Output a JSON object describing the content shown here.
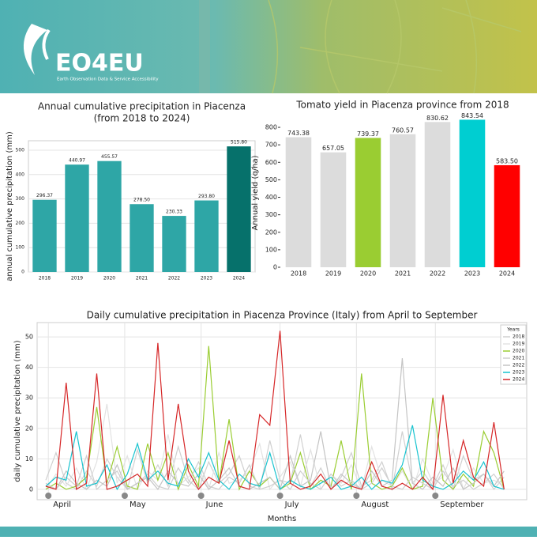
{
  "header": {
    "logo": "EO4EU",
    "tagline": "Earth Observation Data & Service Accessibility"
  },
  "chart_data": [
    {
      "type": "bar",
      "title": "Annual cumulative precipitation in Piacenza",
      "subtitle": "(from 2018 to 2024)",
      "ylabel": "annual cumulative precipitation (mm)",
      "categories": [
        "2018",
        "2019",
        "2020",
        "2021",
        "2022",
        "2023",
        "2024"
      ],
      "values": [
        296.37,
        440.97,
        455.57,
        278.5,
        230.33,
        293.8,
        515.8
      ],
      "value_labels": [
        "296.37",
        "440.97",
        "455.57",
        "278.50",
        "230.33",
        "293.80",
        "515.80"
      ],
      "colors": [
        "#2ea6a6",
        "#2ea6a6",
        "#2ea6a6",
        "#2ea6a6",
        "#2ea6a6",
        "#2ea6a6",
        "#06716b"
      ],
      "ylim": [
        0,
        539
      ],
      "yticks": [
        0,
        100,
        200,
        300,
        400,
        500
      ],
      "grid": true
    },
    {
      "type": "bar",
      "title": "Tomato yield in Piacenza province from 2018",
      "ylabel": "Annual yield (q/ha)",
      "categories": [
        "2018",
        "2019",
        "2020",
        "2021",
        "2022",
        "2023",
        "2024"
      ],
      "values": [
        743.38,
        657.05,
        739.37,
        760.57,
        830.62,
        843.54,
        583.5
      ],
      "value_labels": [
        "743.38",
        "657.05",
        "739.37",
        "760.57",
        "830.62",
        "843.54",
        "583.50"
      ],
      "colors": [
        "#dcdcdc",
        "#dcdcdc",
        "#9acd32",
        "#dcdcdc",
        "#dcdcdc",
        "#00ced1",
        "#ff0000"
      ],
      "ylim": [
        0,
        850
      ],
      "yticks": [
        0,
        100,
        200,
        300,
        400,
        500,
        600,
        700,
        800
      ],
      "grid": false
    },
    {
      "type": "line",
      "title": "Daily cumulative precipitation in Piacenza Province (Italy) from April to September",
      "xlabel": "Months",
      "ylabel": "daily cumulative precipitation (mm)",
      "legend_title": "Years",
      "legend": "upper right",
      "x": [
        0,
        4,
        8,
        12,
        16,
        20,
        24,
        28,
        32,
        36,
        40,
        44,
        48,
        52,
        56,
        60,
        64,
        68,
        72,
        76,
        80,
        84,
        88,
        92,
        96,
        100,
        104,
        108,
        112,
        116,
        120,
        124,
        128,
        132,
        136,
        140,
        144,
        148,
        152,
        156,
        160,
        164,
        168,
        172,
        176,
        180
      ],
      "xlim": [
        0,
        183
      ],
      "xticks": [
        {
          "value": 1,
          "label": "April"
        },
        {
          "value": 31,
          "label": "May"
        },
        {
          "value": 61,
          "label": "June"
        },
        {
          "value": 92,
          "label": "July"
        },
        {
          "value": 122,
          "label": "August"
        },
        {
          "value": 153,
          "label": "September"
        }
      ],
      "ylim": [
        -3.4,
        54.7
      ],
      "yticks": [
        0,
        10,
        20,
        30,
        40,
        50
      ],
      "grid": true,
      "series": [
        {
          "name": "2018",
          "color": "#d0d0d0",
          "values": [
            3,
            12,
            2,
            0,
            6,
            1,
            10,
            4,
            0,
            13,
            2,
            8,
            1,
            14,
            3,
            0,
            9,
            2,
            5,
            11,
            1,
            0,
            16,
            3,
            2,
            18,
            1,
            7,
            0,
            4,
            12,
            1,
            3,
            9,
            0,
            19,
            2,
            6,
            1,
            8,
            0,
            11,
            3,
            5,
            0,
            4
          ]
        },
        {
          "name": "2019",
          "color": "#e2e2e2",
          "values": [
            0,
            5,
            1,
            7,
            0,
            9,
            28,
            2,
            11,
            0,
            6,
            3,
            18,
            1,
            4,
            7,
            0,
            12,
            2,
            3,
            6,
            15,
            0,
            4,
            9,
            1,
            13,
            0,
            5,
            2,
            8,
            0,
            14,
            3,
            1,
            6,
            0,
            10,
            2,
            4,
            13,
            0,
            7,
            2,
            3,
            1
          ]
        },
        {
          "name": "2020",
          "color": "#9acd32",
          "values": [
            0,
            2,
            0,
            1,
            4,
            27,
            2,
            14,
            1,
            0,
            15,
            3,
            12,
            0,
            8,
            1,
            47,
            2,
            23,
            0,
            6,
            1,
            4,
            0,
            2,
            12,
            0,
            3,
            1,
            16,
            0,
            38,
            2,
            0,
            1,
            7,
            0,
            1,
            30,
            3,
            0,
            5,
            1,
            19,
            12,
            0
          ]
        },
        {
          "name": "2021",
          "color": "#cfcfcf",
          "values": [
            2,
            0,
            4,
            1,
            11,
            0,
            3,
            6,
            0,
            2,
            5,
            1,
            0,
            7,
            2,
            9,
            1,
            0,
            4,
            2,
            8,
            0,
            1,
            3,
            0,
            6,
            2,
            0,
            5,
            1,
            3,
            0,
            2,
            7,
            1,
            0,
            4,
            2,
            0,
            6,
            1,
            3,
            0,
            2,
            5,
            0
          ]
        },
        {
          "name": "2022",
          "color": "#c4c4c4",
          "values": [
            1,
            0,
            6,
            2,
            0,
            3,
            1,
            8,
            0,
            2,
            4,
            0,
            6,
            2,
            1,
            5,
            0,
            3,
            7,
            1,
            0,
            2,
            4,
            0,
            11,
            1,
            3,
            19,
            0,
            5,
            2,
            0,
            6,
            1,
            3,
            43,
            2,
            0,
            4,
            1,
            7,
            0,
            2,
            5,
            1,
            6
          ]
        },
        {
          "name": "2023",
          "color": "#17c3cf",
          "values": [
            1,
            4,
            3,
            19,
            1,
            2,
            8,
            0,
            5,
            15,
            3,
            6,
            2,
            1,
            10,
            4,
            12,
            3,
            0,
            5,
            2,
            1,
            12,
            0,
            3,
            1,
            0,
            2,
            4,
            0,
            1,
            4,
            0,
            3,
            2,
            8,
            21,
            3,
            1,
            0,
            2,
            6,
            3,
            9,
            1,
            0
          ]
        },
        {
          "name": "2024",
          "color": "#d62728",
          "values": [
            1,
            0,
            35,
            0,
            2,
            38,
            0,
            1,
            3,
            5,
            1,
            48,
            3,
            28,
            6,
            0,
            4,
            2,
            16,
            1,
            0,
            24.5,
            21,
            52,
            2,
            0,
            1,
            5,
            0,
            3,
            1,
            0,
            9,
            1,
            0,
            2,
            0,
            4,
            0,
            31,
            2,
            16,
            4,
            1,
            22,
            0
          ]
        }
      ]
    }
  ]
}
